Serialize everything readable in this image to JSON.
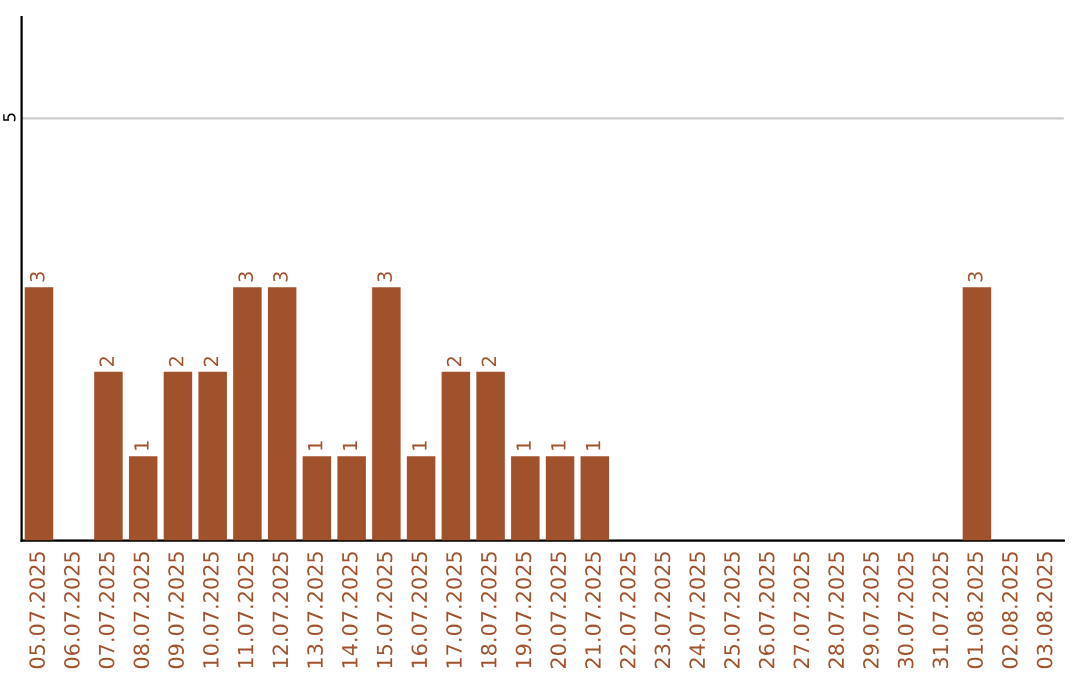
{
  "chart_data": {
    "type": "bar",
    "categories": [
      "05.07.2025",
      "06.07.2025",
      "07.07.2025",
      "08.07.2025",
      "09.07.2025",
      "10.07.2025",
      "11.07.2025",
      "12.07.2025",
      "13.07.2025",
      "14.07.2025",
      "15.07.2025",
      "16.07.2025",
      "17.07.2025",
      "18.07.2025",
      "19.07.2025",
      "20.07.2025",
      "21.07.2025",
      "22.07.2025",
      "23.07.2025",
      "24.07.2025",
      "25.07.2025",
      "26.07.2025",
      "27.07.2025",
      "28.07.2025",
      "29.07.2025",
      "30.07.2025",
      "31.07.2025",
      "01.08.2025",
      "02.08.2025",
      "03.08.2025"
    ],
    "values": [
      3,
      0,
      2,
      1,
      2,
      2,
      3,
      3,
      1,
      1,
      3,
      1,
      2,
      2,
      1,
      1,
      1,
      0,
      0,
      0,
      0,
      0,
      0,
      0,
      0,
      0,
      0,
      3,
      0,
      0
    ],
    "value_labels": [
      "3",
      null,
      "2",
      "1",
      "2",
      "2",
      "3",
      "3",
      "1",
      "1",
      "3",
      "1",
      "2",
      "2",
      "1",
      "1",
      "1",
      null,
      null,
      null,
      null,
      null,
      null,
      null,
      null,
      null,
      null,
      "3",
      null,
      null
    ],
    "color": "#a0522d",
    "ylim": [
      0,
      6.2
    ],
    "yticks": [
      0,
      5
    ],
    "grid": "y"
  }
}
